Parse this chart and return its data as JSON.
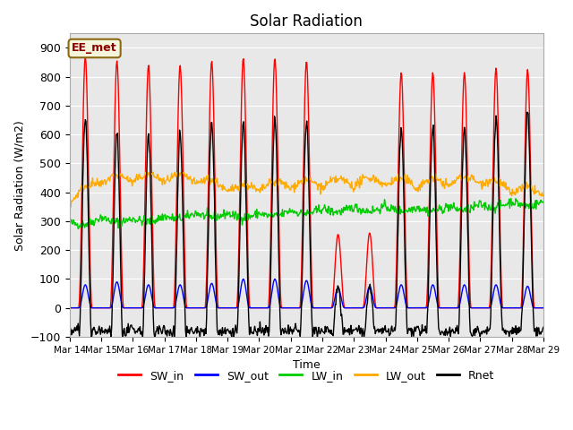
{
  "title": "Solar Radiation",
  "ylabel": "Solar Radiation (W/m2)",
  "xlabel": "Time",
  "ylim": [
    -100,
    950
  ],
  "yticks": [
    -100,
    0,
    100,
    200,
    300,
    400,
    500,
    600,
    700,
    800,
    900
  ],
  "x_tick_labels": [
    "Mar 14",
    "Mar 15",
    "Mar 16",
    "Mar 17",
    "Mar 18",
    "Mar 19",
    "Mar 20",
    "Mar 21",
    "Mar 22",
    "Mar 23",
    "Mar 24",
    "Mar 25",
    "Mar 26",
    "Mar 27",
    "Mar 28",
    "Mar 29"
  ],
  "colors": {
    "SW_in": "#ff0000",
    "SW_out": "#0000ff",
    "LW_in": "#00cc00",
    "LW_out": "#ffaa00",
    "Rnet": "#000000"
  },
  "background_color": "#e8e8e8",
  "annotation_text": "EE_met",
  "annotation_bg": "#f5f5dc",
  "annotation_border": "#8b6914",
  "peaks_swin": [
    870,
    855,
    840,
    840,
    855,
    865,
    865,
    855,
    255,
    260,
    815,
    815,
    815,
    830,
    825
  ],
  "peaks_swout": [
    80,
    90,
    80,
    80,
    85,
    100,
    100,
    95,
    70,
    75,
    80,
    80,
    80,
    80,
    75
  ],
  "night_rnet": -80,
  "lw_in_base": [
    295,
    315,
    310,
    318,
    330,
    328,
    328,
    338,
    345,
    350,
    352,
    350,
    352,
    358,
    370,
    368
  ],
  "lw_out_base": [
    355,
    425,
    432,
    433,
    428,
    398,
    400,
    412,
    412,
    418,
    422,
    412,
    420,
    428,
    393,
    382
  ]
}
